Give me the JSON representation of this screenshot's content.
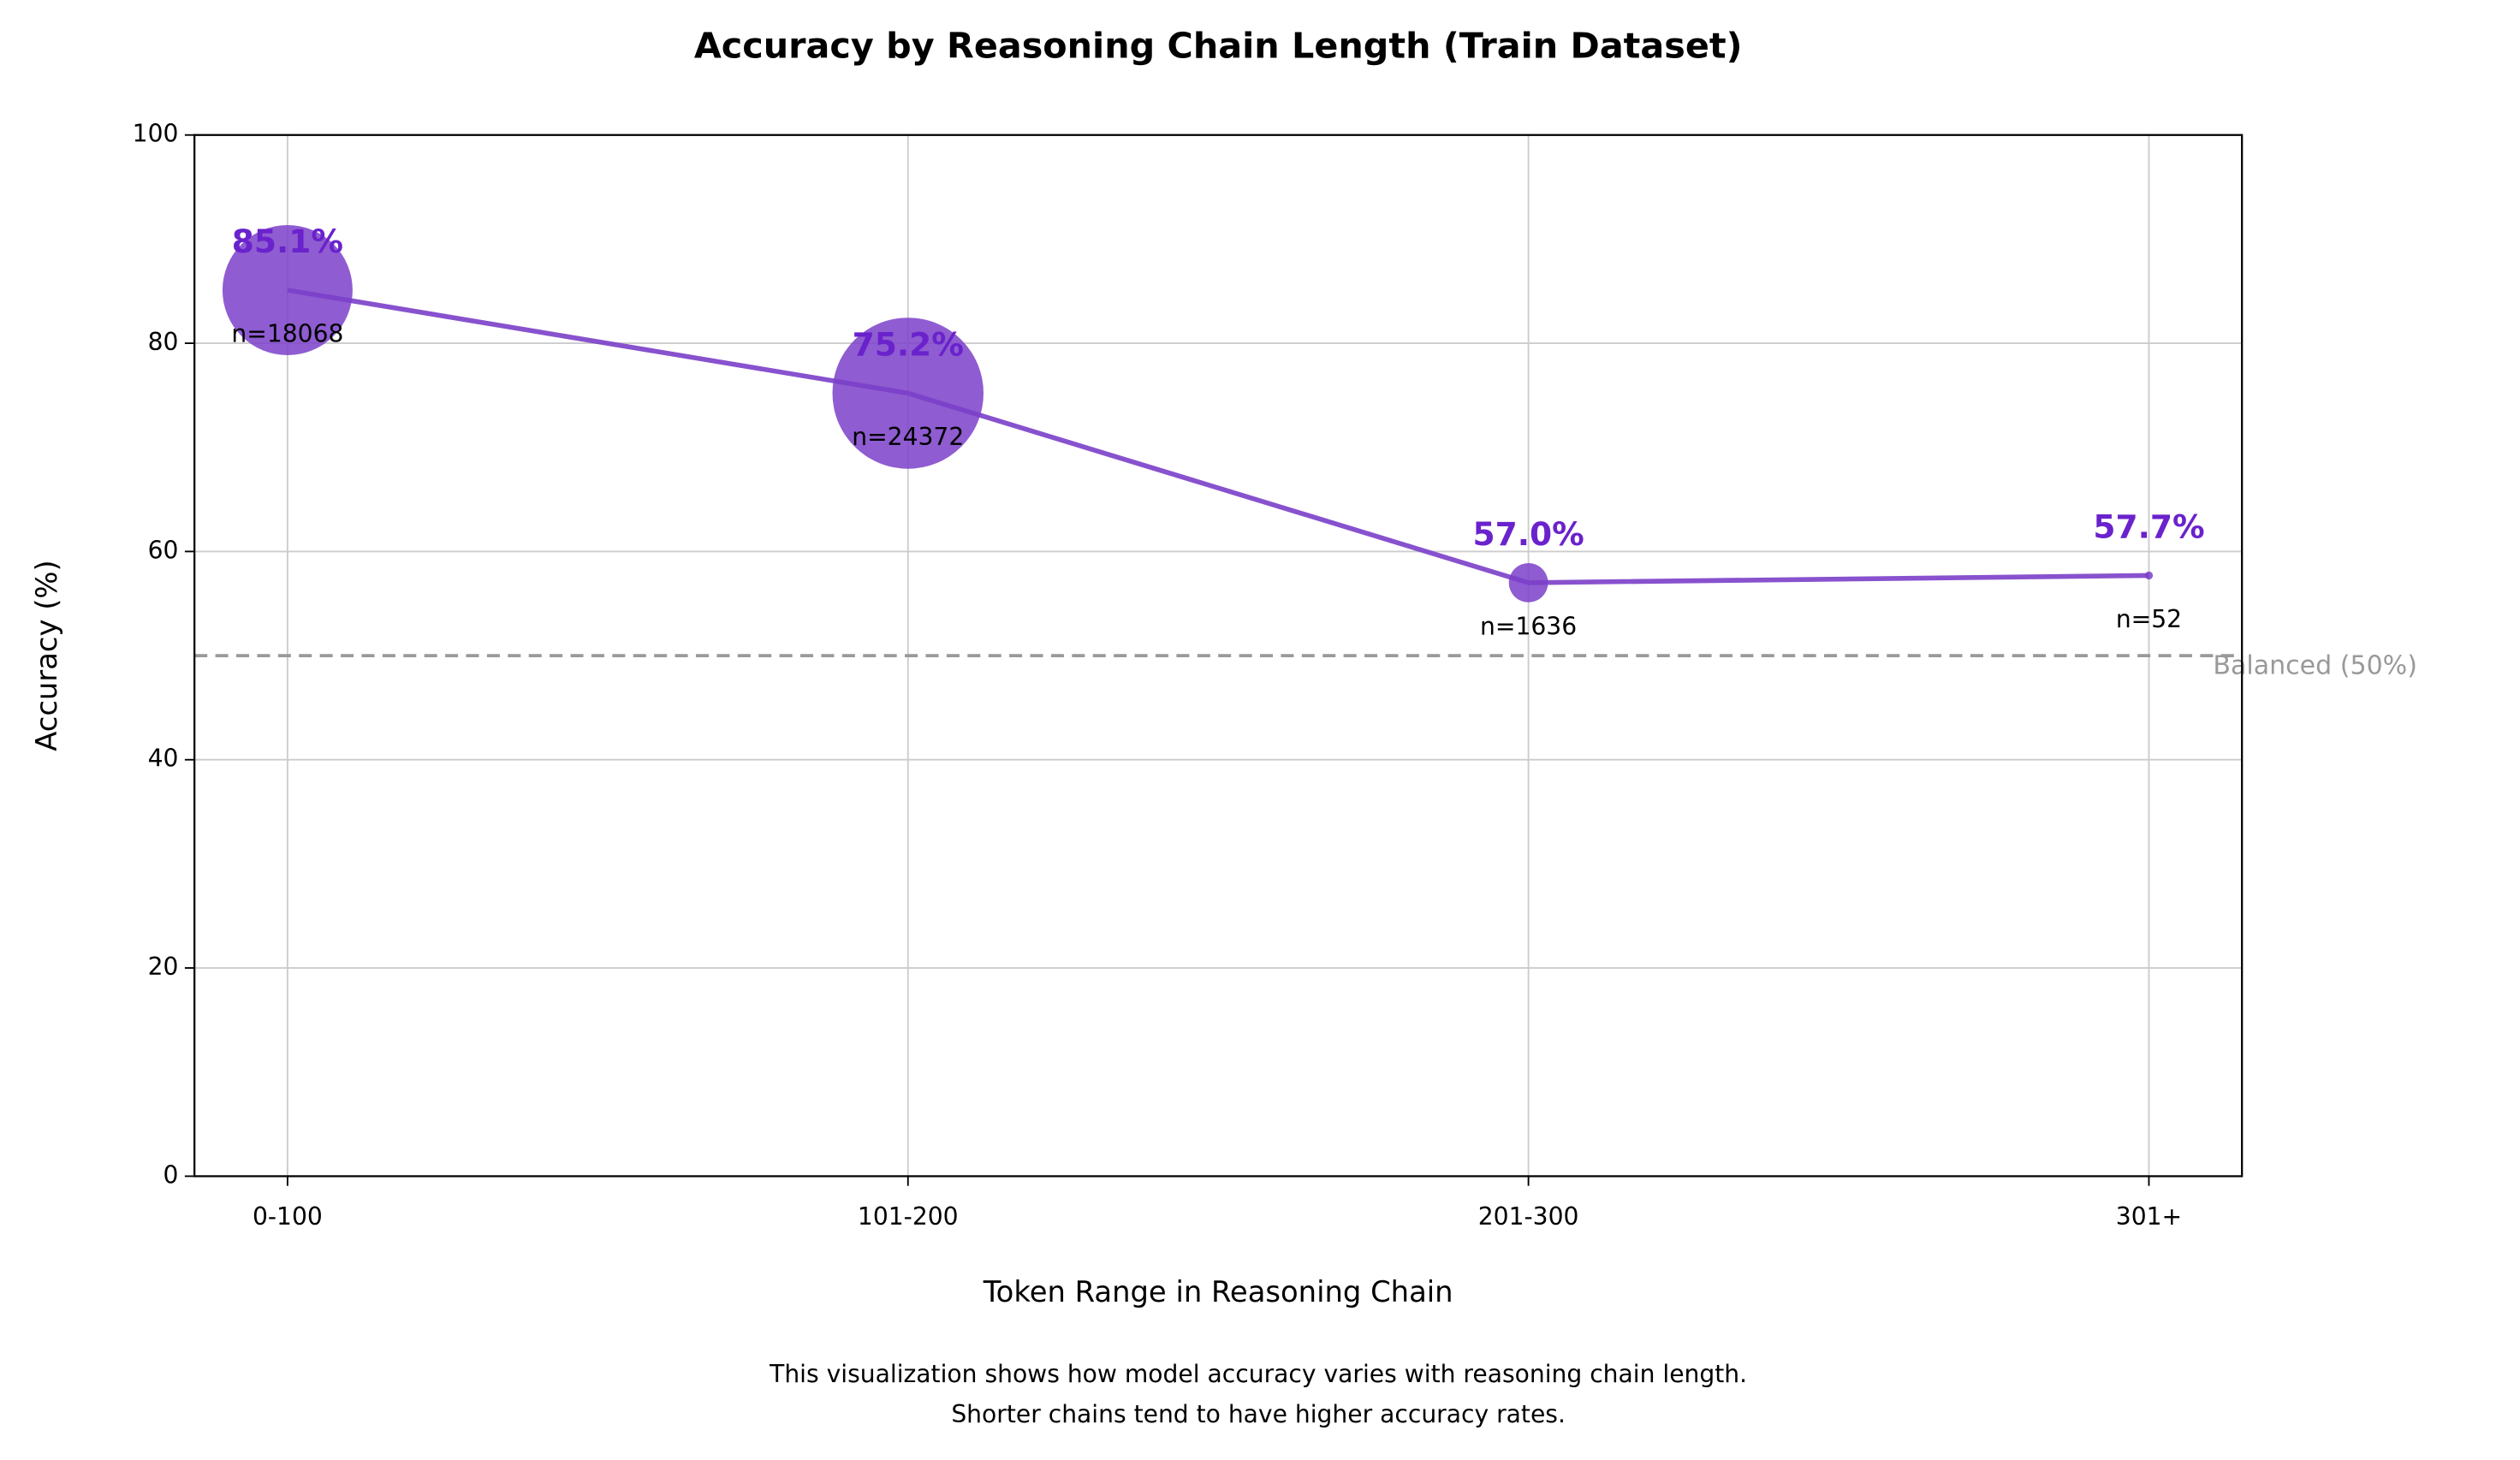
{
  "chart_data": {
    "type": "line",
    "title": "Accuracy by Reasoning Chain Length (Train Dataset)",
    "x_label": "Token Range in Reasoning Chain",
    "y_label": "Accuracy (%)",
    "categories": [
      "0-100",
      "101-200",
      "201-300",
      "301+"
    ],
    "values": [
      85.1,
      75.2,
      57.0,
      57.7
    ],
    "value_labels": [
      "85.1%",
      "75.2%",
      "57.0%",
      "57.7%"
    ],
    "sizes": [
      18068,
      24372,
      1636,
      52
    ],
    "size_labels": [
      "n=18068",
      "n=24372",
      "n=1636",
      "n=52"
    ],
    "color": "#7b3fc9",
    "label_color": "#6a22cc",
    "ylim": [
      0,
      100
    ],
    "yticks": [
      0,
      20,
      40,
      60,
      80,
      100
    ],
    "grid": true,
    "reference_line": {
      "value": 50,
      "label": "Balanced (50%)",
      "color": "#999999"
    },
    "footnote": [
      "This visualization shows how model accuracy varies with reasoning chain length.",
      "Shorter chains tend to have higher accuracy rates."
    ]
  }
}
